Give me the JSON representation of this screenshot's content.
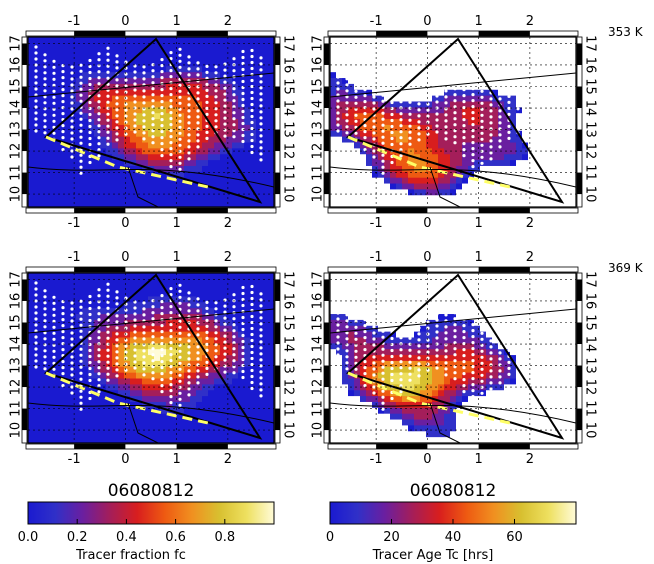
{
  "chart_data": [
    {
      "type": "heatmap",
      "panel": "top-left",
      "level_label": "",
      "x_ticks": [
        "-1",
        "0",
        "1",
        "2"
      ],
      "y_ticks": [
        "10",
        "11",
        "12",
        "13",
        "14",
        "15",
        "16",
        "17"
      ],
      "xlim": [
        -1.9,
        2.9
      ],
      "ylim": [
        9.4,
        17.3
      ],
      "field": "tracer_fraction"
    },
    {
      "type": "heatmap",
      "panel": "top-right",
      "level_label": "353 K",
      "x_ticks": [
        "-1",
        "0",
        "1",
        "2"
      ],
      "y_ticks": [
        "10",
        "11",
        "12",
        "13",
        "14",
        "15",
        "16",
        "17"
      ],
      "xlim": [
        -1.9,
        2.9
      ],
      "ylim": [
        9.4,
        17.3
      ],
      "field": "tracer_age"
    },
    {
      "type": "heatmap",
      "panel": "bottom-left",
      "level_label": "",
      "x_ticks": [
        "-1",
        "0",
        "1",
        "2"
      ],
      "y_ticks": [
        "10",
        "11",
        "12",
        "13",
        "14",
        "15",
        "16",
        "17"
      ],
      "xlim": [
        -1.9,
        2.9
      ],
      "ylim": [
        9.4,
        17.3
      ],
      "field": "tracer_fraction"
    },
    {
      "type": "heatmap",
      "panel": "bottom-right",
      "level_label": "369 K",
      "x_ticks": [
        "-1",
        "0",
        "1",
        "2"
      ],
      "y_ticks": [
        "10",
        "11",
        "12",
        "13",
        "14",
        "15",
        "16",
        "17"
      ],
      "xlim": [
        -1.9,
        2.9
      ],
      "ylim": [
        9.4,
        17.3
      ],
      "field": "tracer_age"
    }
  ],
  "colorbars": [
    {
      "date": "06080812",
      "label": "Tracer fraction fc",
      "ticks": [
        "0.0",
        "0.2",
        "0.4",
        "0.6",
        "0.8"
      ],
      "tick_values": [
        0.0,
        0.2,
        0.4,
        0.6,
        0.8
      ],
      "range": [
        0.0,
        1.0
      ],
      "colors": [
        "#1a1ad0",
        "#3030c8",
        "#6a1fa0",
        "#a41e5a",
        "#d81e1e",
        "#ee5a12",
        "#f09020",
        "#d8c030",
        "#eee060",
        "#fffbd8"
      ]
    },
    {
      "date": "06080812",
      "label": "Tracer Age Tc [hrs]",
      "ticks": [
        "0",
        "20",
        "40",
        "60"
      ],
      "tick_values": [
        0,
        20,
        40,
        60
      ],
      "range": [
        0,
        80
      ],
      "colors": [
        "#1a1ad0",
        "#3030c8",
        "#6a1fa0",
        "#a41e5a",
        "#d81e1e",
        "#ee5a12",
        "#f09020",
        "#d8c030",
        "#eee060",
        "#fffbd8"
      ]
    }
  ]
}
